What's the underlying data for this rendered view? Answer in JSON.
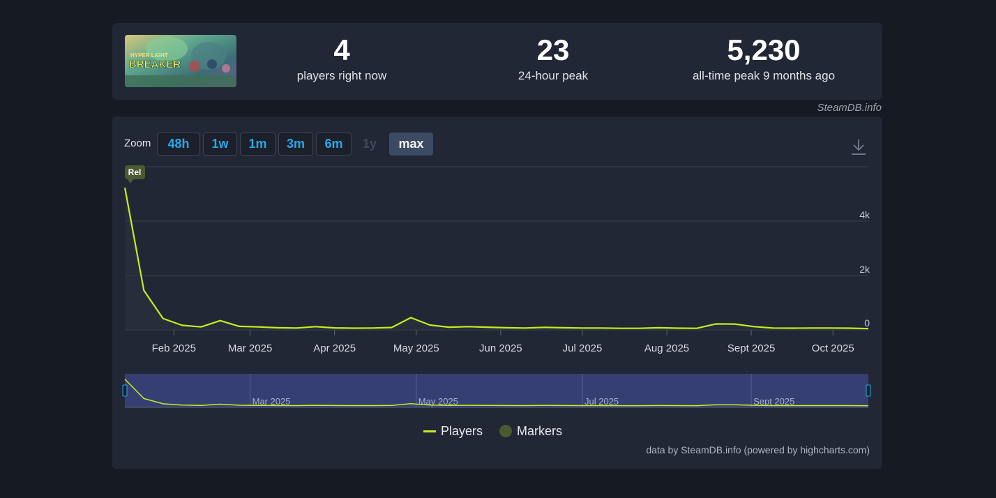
{
  "stats": {
    "current": {
      "value": "4",
      "label": "players right now"
    },
    "peak24": {
      "value": "23",
      "label": "24-hour peak"
    },
    "alltime": {
      "value": "5,230",
      "label": "all-time peak 9 months ago"
    }
  },
  "game": {
    "cover_text_top": "HYPER LIGHT",
    "cover_text_main": "BREAKER"
  },
  "source_credit": "SteamDB.info",
  "zoom": {
    "label": "Zoom",
    "buttons": [
      {
        "label": "48h",
        "state": "normal"
      },
      {
        "label": "1w",
        "state": "normal"
      },
      {
        "label": "1m",
        "state": "normal"
      },
      {
        "label": "3m",
        "state": "normal"
      },
      {
        "label": "6m",
        "state": "normal"
      },
      {
        "label": "1y",
        "state": "disabled"
      },
      {
        "label": "max",
        "state": "active"
      }
    ]
  },
  "legend": {
    "players": "Players",
    "markers": "Markers"
  },
  "footer": "data by SteamDB.info (powered by highcharts.com)",
  "colors": {
    "line": "#c5ee1a",
    "marker": "#4b5a32",
    "navigator_mask": "#363f73",
    "accent": "#2aa7e8"
  },
  "icons": {
    "download": "download-icon"
  },
  "chart_data": {
    "type": "line",
    "series": [
      {
        "name": "Players",
        "x": [
          "2025-01-14",
          "2025-01-21",
          "2025-01-28",
          "2025-02-04",
          "2025-02-11",
          "2025-02-18",
          "2025-02-25",
          "2025-03-04",
          "2025-03-11",
          "2025-03-18",
          "2025-03-25",
          "2025-04-01",
          "2025-04-08",
          "2025-04-15",
          "2025-04-22",
          "2025-04-29",
          "2025-05-06",
          "2025-05-13",
          "2025-05-20",
          "2025-05-27",
          "2025-06-03",
          "2025-06-10",
          "2025-06-17",
          "2025-06-24",
          "2025-07-01",
          "2025-07-08",
          "2025-07-15",
          "2025-07-22",
          "2025-07-29",
          "2025-08-05",
          "2025-08-12",
          "2025-08-19",
          "2025-08-26",
          "2025-09-02",
          "2025-09-09",
          "2025-09-16",
          "2025-09-23",
          "2025-09-30",
          "2025-10-07",
          "2025-10-14"
        ],
        "values": [
          5230,
          1450,
          420,
          170,
          110,
          340,
          130,
          110,
          80,
          70,
          120,
          75,
          65,
          70,
          90,
          450,
          180,
          100,
          120,
          100,
          80,
          70,
          95,
          80,
          70,
          70,
          60,
          60,
          80,
          65,
          60,
          220,
          215,
          120,
          70,
          65,
          70,
          70,
          65,
          45
        ]
      }
    ],
    "markers": [
      {
        "x": "2025-01-14",
        "label": "Rel"
      }
    ],
    "x_ticks": [
      {
        "x": "2025-02-01",
        "label": "Feb 2025"
      },
      {
        "x": "2025-03-01",
        "label": "Mar 2025"
      },
      {
        "x": "2025-04-01",
        "label": "Apr 2025"
      },
      {
        "x": "2025-05-01",
        "label": "May 2025"
      },
      {
        "x": "2025-06-01",
        "label": "Jun 2025"
      },
      {
        "x": "2025-07-01",
        "label": "Jul 2025"
      },
      {
        "x": "2025-08-01",
        "label": "Aug 2025"
      },
      {
        "x": "2025-09-01",
        "label": "Sept 2025"
      },
      {
        "x": "2025-10-01",
        "label": "Oct 2025"
      }
    ],
    "y_ticks": [
      {
        "value": 0,
        "label": "0"
      },
      {
        "value": 2000,
        "label": "2k"
      },
      {
        "value": 4000,
        "label": "4k"
      }
    ],
    "ylim": [
      0,
      6000
    ],
    "xlim": [
      "2025-01-14",
      "2025-10-14"
    ],
    "navigator_ticks": [
      {
        "x": "2025-03-01",
        "label": "Mar 2025"
      },
      {
        "x": "2025-05-01",
        "label": "May 2025"
      },
      {
        "x": "2025-07-01",
        "label": "Jul 2025"
      },
      {
        "x": "2025-09-01",
        "label": "Sept 2025"
      }
    ],
    "grid": true,
    "legend_position": "bottom-center"
  }
}
